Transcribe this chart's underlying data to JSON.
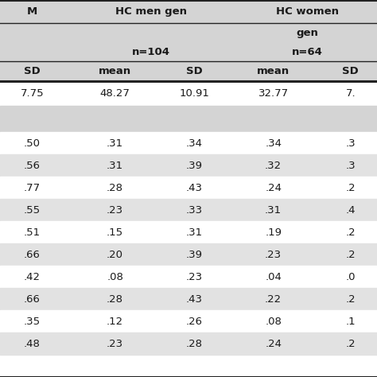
{
  "col_headers_row1": [
    "M",
    "HC men gen",
    "",
    "HC women",
    ""
  ],
  "col_headers_row2": [
    "",
    "",
    "",
    "gen",
    ""
  ],
  "col_headers_row3": [
    "",
    "n=104",
    "",
    "n=64",
    ""
  ],
  "col_headers_row4": [
    "SD",
    "mean",
    "SD",
    "mean",
    "SD"
  ],
  "rows": [
    [
      "7.75",
      "48.27",
      "10.91",
      "32.77",
      "7."
    ],
    [
      "",
      "",
      "",
      "",
      ""
    ],
    [
      ".50",
      ".31",
      ".34",
      ".34",
      ".3"
    ],
    [
      ".56",
      ".31",
      ".39",
      ".32",
      ".3"
    ],
    [
      ".77",
      ".28",
      ".43",
      ".24",
      ".2"
    ],
    [
      ".55",
      ".23",
      ".33",
      ".31",
      ".4"
    ],
    [
      ".51",
      ".15",
      ".31",
      ".19",
      ".2"
    ],
    [
      ".66",
      ".20",
      ".39",
      ".23",
      ".2"
    ],
    [
      ".42",
      ".08",
      ".23",
      ".04",
      ".0"
    ],
    [
      ".66",
      ".28",
      ".43",
      ".22",
      ".2"
    ],
    [
      ".35",
      ".12",
      ".26",
      ".08",
      ".1"
    ],
    [
      ".48",
      ".23",
      ".28",
      ".24",
      ".2"
    ]
  ],
  "header_bg": "#d4d4d4",
  "row_bg_light": "#e2e2e2",
  "row_bg_white": "#ffffff",
  "empty_row_bg": "#d4d4d4",
  "text_color": "#1a1a1a",
  "figsize": [
    4.74,
    4.74
  ],
  "dpi": 100,
  "font_size": 9.5,
  "line_color": "#222222",
  "thick_lw": 2.2,
  "thin_lw": 1.0
}
